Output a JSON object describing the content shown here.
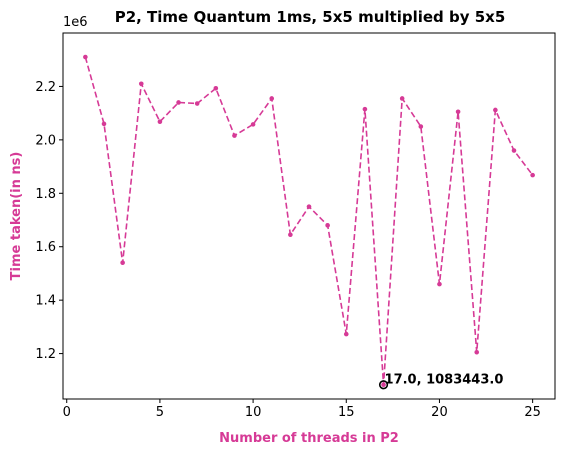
{
  "chart_data": {
    "type": "line",
    "title": "P2, Time Quantum 1ms, 5x5 multiplied by 5x5",
    "xlabel": "Number of threads in P2",
    "ylabel": "Time taken(in ns)",
    "y_offset_label": "1e6",
    "xlim": [
      -0.2,
      26.2
    ],
    "ylim": [
      1030000,
      2400000
    ],
    "xticks": [
      0,
      5,
      10,
      15,
      20,
      25
    ],
    "yticks": [
      1.2,
      1.4,
      1.6,
      1.8,
      2.0,
      2.2
    ],
    "ytick_multiplier": 1000000,
    "line_color": "#d63a96",
    "line_style": "dashed",
    "label_color": "#d63a96",
    "grid": false,
    "series": [
      {
        "x": [
          1,
          2,
          3,
          4,
          5,
          6,
          7,
          8,
          9,
          10,
          11,
          12,
          13,
          14,
          15,
          16,
          17,
          18,
          19,
          20,
          21,
          22,
          23,
          24,
          25
        ],
        "values": [
          2310000,
          2060000,
          1540000,
          2210000,
          2068000,
          2140000,
          2136000,
          2193000,
          2016000,
          2058000,
          2155000,
          1645000,
          1750000,
          1680000,
          1273000,
          2115000,
          1083443,
          2155000,
          2050000,
          1460000,
          2105000,
          1205000,
          2112000,
          1960000,
          1868000
        ]
      }
    ],
    "annotation": {
      "x": 17,
      "y": 1083443,
      "text": "17.0, 1083443.0"
    }
  }
}
